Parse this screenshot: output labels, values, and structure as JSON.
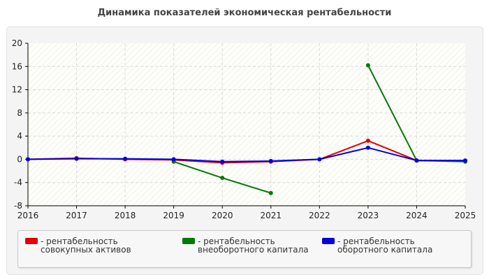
{
  "chart_data": {
    "type": "line",
    "title": "Динамика показателей экономическая рентабельности",
    "xlabel": "",
    "ylabel": "",
    "x": [
      "2016",
      "2017",
      "2018",
      "2019",
      "2020",
      "2021",
      "2022",
      "2023",
      "2024",
      "2025"
    ],
    "ylim": [
      -8,
      20
    ],
    "yticks": [
      "20",
      "16",
      "12",
      "8",
      "4",
      "0",
      "-4",
      "-8"
    ],
    "grid": true,
    "legend_position": "bottom",
    "series": [
      {
        "name": "- рентабельность совокупных активов",
        "color": "#e00000",
        "values": [
          0,
          0.2,
          0,
          -0.1,
          -0.6,
          -0.4,
          0,
          3.2,
          -0.2,
          -0.3
        ]
      },
      {
        "name": "- рентабельность внеоборотного капитала",
        "color": "#007a00",
        "values": [
          null,
          null,
          null,
          -0.4,
          -3.2,
          -5.8,
          null,
          16.2,
          -0.2,
          -0.4
        ]
      },
      {
        "name": "- рентабельность оборотного капитала",
        "color": "#0000e0",
        "values": [
          0,
          0.1,
          0.1,
          0,
          -0.4,
          -0.3,
          0,
          2,
          -0.2,
          -0.2
        ]
      }
    ]
  }
}
